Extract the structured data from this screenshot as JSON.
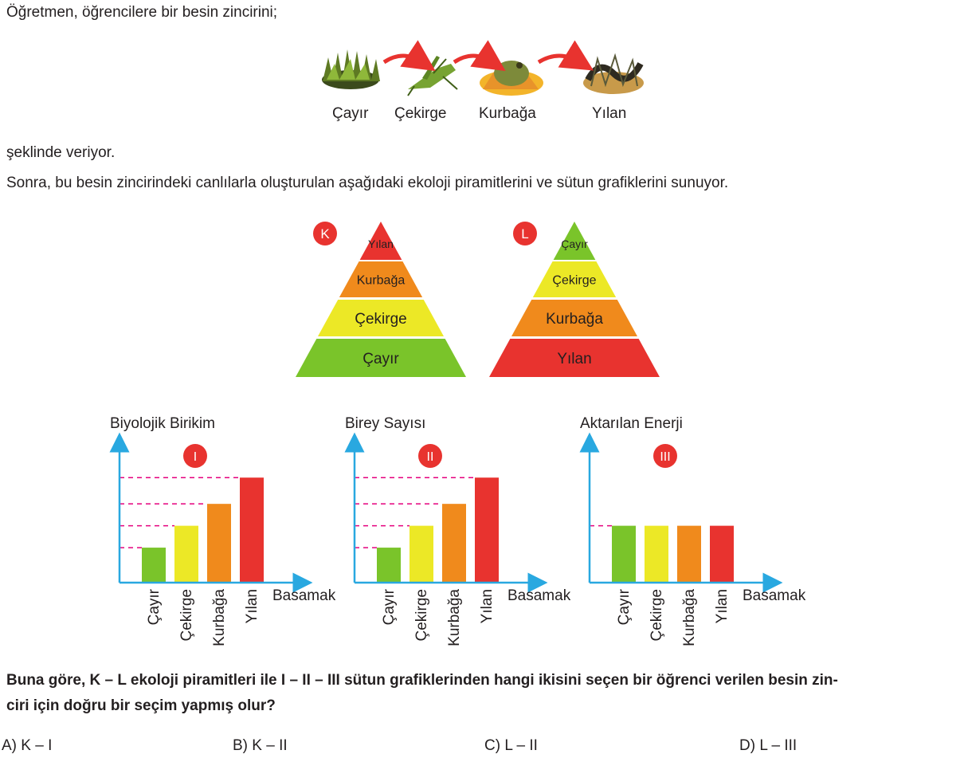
{
  "intro": "Öğretmen, öğrencilere bir besin zincirini;",
  "food_chain": {
    "organisms": [
      "Çayır",
      "Çekirge",
      "Kurbağa",
      "Yılan"
    ]
  },
  "after_chain": "şeklinde veriyor.",
  "next_paragraph": "Sonra, bu besin zincirindeki canlılarla oluşturulan aşağıdaki ekoloji piramitlerini ve sütun grafiklerini sunuyor.",
  "pyramids": [
    {
      "label": "K",
      "levels_top_to_bottom": [
        "Yılan",
        "Kurbağa",
        "Çekirge",
        "Çayır"
      ]
    },
    {
      "label": "L",
      "levels_top_to_bottom": [
        "Çayır",
        "Çekirge",
        "Kurbağa",
        "Yılan"
      ]
    }
  ],
  "colors": {
    "green": "#7ac42a",
    "yellow": "#ece826",
    "orange": "#f08a1c",
    "red": "#e8332f",
    "axis": "#29a8e0",
    "guide": "#e5007e",
    "badge": "#e8332f"
  },
  "chart_data": [
    {
      "type": "bar",
      "badge": "I",
      "ylabel": "Biyolojik Birikim",
      "xlabel": "Basamak",
      "categories": [
        "Çayır",
        "Çekirge",
        "Kurbağa",
        "Yılan"
      ],
      "values": [
        1.6,
        2.6,
        3.6,
        4.8
      ],
      "ylim": [
        0,
        5.5
      ],
      "guide_lines": true
    },
    {
      "type": "bar",
      "badge": "II",
      "ylabel": "Birey Sayısı",
      "xlabel": "Basamak",
      "categories": [
        "Çayır",
        "Çekirge",
        "Kurbağa",
        "Yılan"
      ],
      "values": [
        1.6,
        2.6,
        3.6,
        4.8
      ],
      "ylim": [
        0,
        5.5
      ],
      "guide_lines": true
    },
    {
      "type": "bar",
      "badge": "III",
      "ylabel": "Aktarılan Enerji",
      "xlabel": "Basamak",
      "categories": [
        "Çayır",
        "Çekirge",
        "Kurbağa",
        "Yılan"
      ],
      "values": [
        2.6,
        2.6,
        2.6,
        2.6
      ],
      "ylim": [
        0,
        5.5
      ],
      "guide_lines": true
    }
  ],
  "question_line1": "Buna göre, K – L ekoloji piramitleri ile I – II – III sütun grafiklerinden hangi ikisini seçen bir öğrenci verilen besin zin-",
  "question_line2": "ciri için doğru bir seçim yapmış olur?",
  "options": [
    {
      "letter": "A)",
      "text": "K – I"
    },
    {
      "letter": "B)",
      "text": "K – II"
    },
    {
      "letter": "C)",
      "text": "L – II"
    },
    {
      "letter": "D)",
      "text": "L – III"
    }
  ]
}
